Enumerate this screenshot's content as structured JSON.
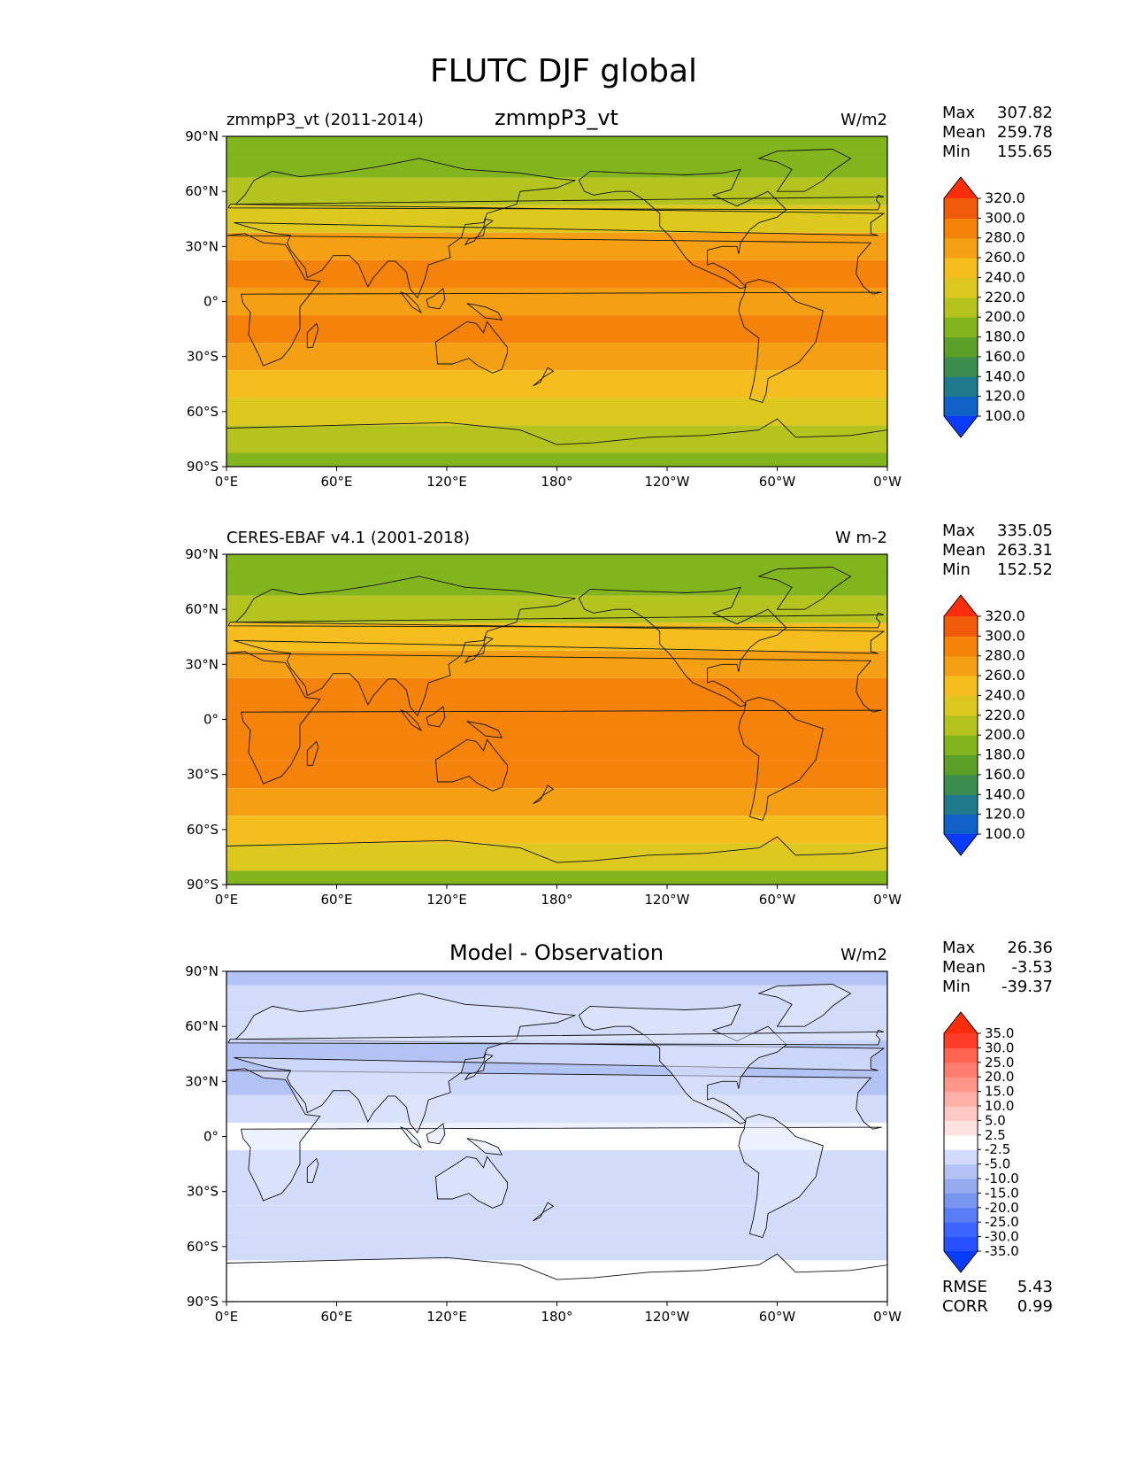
{
  "figure": {
    "title": "FLUTC DJF global"
  },
  "axes": {
    "lat_ticks": [
      "90°N",
      "60°N",
      "30°N",
      "0°",
      "30°S",
      "60°S",
      "90°S"
    ],
    "lon_ticks": [
      "0°E",
      "60°E",
      "120°E",
      "180°",
      "120°W",
      "60°W",
      "0°W"
    ]
  },
  "colors": {
    "main_levels": [
      "#0a3cff",
      "#1060c8",
      "#1e7a8c",
      "#3c8c50",
      "#5aa028",
      "#82b41e",
      "#b4c31e",
      "#dcc81e",
      "#f5be1e",
      "#f5a014",
      "#f5820a",
      "#f05a0a",
      "#ff2d0a"
    ],
    "diff_levels": [
      "#0a3cff",
      "#2850ff",
      "#3c64ff",
      "#5a7cf5",
      "#7896f0",
      "#96aaf0",
      "#b4c3f5",
      "#d2dcfa",
      "#ffffff",
      "#ffe1e1",
      "#ffc8c3",
      "#ffafa5",
      "#ff9687",
      "#ff7d6e",
      "#ff6450",
      "#ff3c28",
      "#ff2d0a"
    ]
  },
  "panels": [
    {
      "left_title": "zmmpP3_vt (2011-2014)",
      "center_title": "zmmpP3_vt",
      "units": "W/m2",
      "stats": {
        "labels": [
          "Max",
          "Mean",
          "Min"
        ],
        "values": [
          "307.82",
          "259.78",
          "155.65"
        ]
      },
      "colorbar": [
        "320.0",
        "300.0",
        "280.0",
        "260.0",
        "240.0",
        "220.0",
        "200.0",
        "180.0",
        "160.0",
        "140.0",
        "120.0",
        "100.0"
      ]
    },
    {
      "left_title": "CERES-EBAF v4.1 (2001-2018)",
      "center_title": "",
      "units": "W m-2",
      "stats": {
        "labels": [
          "Max",
          "Mean",
          "Min"
        ],
        "values": [
          "335.05",
          "263.31",
          "152.52"
        ]
      },
      "colorbar": [
        "320.0",
        "300.0",
        "280.0",
        "260.0",
        "240.0",
        "220.0",
        "200.0",
        "180.0",
        "160.0",
        "140.0",
        "120.0",
        "100.0"
      ]
    },
    {
      "left_title": "",
      "center_title": "Model - Observation",
      "units": "W/m2",
      "stats": {
        "labels": [
          "Max",
          "Mean",
          "Min"
        ],
        "values": [
          "26.36",
          "-3.53",
          "-39.37"
        ]
      },
      "colorbar": [
        "35.0",
        "30.0",
        "25.0",
        "20.0",
        "15.0",
        "10.0",
        "5.0",
        "2.5",
        "-2.5",
        "-5.0",
        "-10.0",
        "-15.0",
        "-20.0",
        "-25.0",
        "-30.0",
        "-35.0"
      ],
      "extra_stats": {
        "labels": [
          "RMSE",
          "CORR"
        ],
        "values": [
          "5.43",
          "0.99"
        ]
      }
    }
  ],
  "chart_data": [
    {
      "type": "heatmap",
      "title": "zmmpP3_vt",
      "subtitle": "zmmpP3_vt (2011-2014)",
      "units": "W/m2",
      "xlabel": "",
      "ylabel": "",
      "x": [
        "0°E",
        "60°E",
        "120°E",
        "180°",
        "120°W",
        "60°W",
        "0°W"
      ],
      "y": [
        "90°N",
        "60°N",
        "30°N",
        "0°",
        "30°S",
        "60°S",
        "90°S"
      ],
      "levels": [
        100,
        120,
        140,
        160,
        180,
        200,
        220,
        240,
        260,
        280,
        300,
        320
      ],
      "zonal_profile": {
        "lat": [
          90,
          75,
          60,
          45,
          30,
          15,
          0,
          -15,
          -30,
          -45,
          -60,
          -75,
          -90
        ],
        "value": [
          185,
          195,
          210,
          235,
          262,
          288,
          275,
          285,
          278,
          258,
          238,
          218,
          190
        ]
      },
      "stats": {
        "max": 307.82,
        "mean": 259.78,
        "min": 155.65
      }
    },
    {
      "type": "heatmap",
      "title": "CERES-EBAF v4.1 (2001-2018)",
      "units": "W m-2",
      "x": [
        "0°E",
        "60°E",
        "120°E",
        "180°",
        "120°W",
        "60°W",
        "0°W"
      ],
      "y": [
        "90°N",
        "60°N",
        "30°N",
        "0°",
        "30°S",
        "60°S",
        "90°S"
      ],
      "levels": [
        100,
        120,
        140,
        160,
        180,
        200,
        220,
        240,
        260,
        280,
        300,
        320
      ],
      "zonal_profile": {
        "lat": [
          90,
          75,
          60,
          45,
          30,
          15,
          0,
          -15,
          -30,
          -45,
          -60,
          -75,
          -90
        ],
        "value": [
          190,
          198,
          212,
          240,
          268,
          295,
          280,
          290,
          284,
          262,
          242,
          222,
          195
        ]
      },
      "stats": {
        "max": 335.05,
        "mean": 263.31,
        "min": 152.52
      }
    },
    {
      "type": "heatmap",
      "title": "Model - Observation",
      "units": "W/m2",
      "x": [
        "0°E",
        "60°E",
        "120°E",
        "180°",
        "120°W",
        "60°W",
        "0°W"
      ],
      "y": [
        "90°N",
        "60°N",
        "30°N",
        "0°",
        "30°S",
        "60°S",
        "90°S"
      ],
      "levels": [
        -35,
        -30,
        -25,
        -20,
        -15,
        -10,
        -5,
        -2.5,
        2.5,
        5,
        10,
        15,
        20,
        25,
        30,
        35
      ],
      "zonal_profile": {
        "lat": [
          90,
          75,
          60,
          45,
          30,
          15,
          0,
          -15,
          -30,
          -45,
          -60,
          -75,
          -90
        ],
        "value": [
          -6,
          -4,
          -3,
          -6,
          -7,
          -5,
          1,
          -4,
          -5,
          -4,
          -4,
          2,
          -1
        ]
      },
      "stats": {
        "max": 26.36,
        "mean": -3.53,
        "min": -39.37,
        "rmse": 5.43,
        "corr": 0.99
      }
    }
  ]
}
